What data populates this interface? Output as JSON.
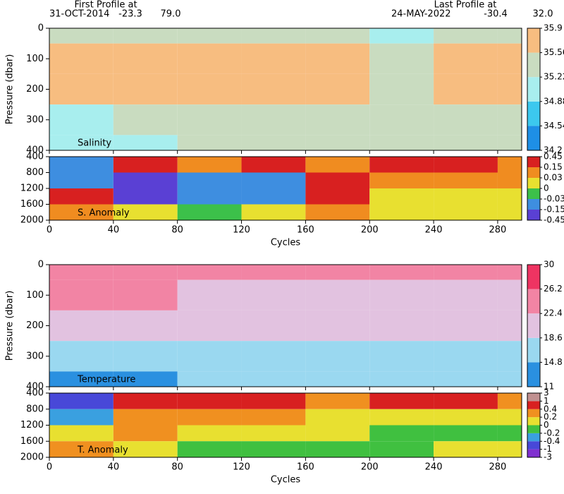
{
  "header": {
    "first_title": "First Profile at",
    "first_date": "31-OCT-2014",
    "first_lat": "-23.3",
    "first_lon": "79.0",
    "last_title": "Last Profile at",
    "last_date": "24-MAY-2022",
    "last_lat": "-30.4",
    "last_lon": "32.0"
  },
  "chart_data": [
    {
      "type": "heatmap",
      "label": "Salinity",
      "ylabel": "Pressure (dbar)",
      "xlim": [
        0,
        295
      ],
      "xticks": [
        0,
        40,
        80,
        120,
        160,
        200,
        240,
        280
      ],
      "ylim": [
        400,
        0
      ],
      "yticks": [
        0,
        100,
        200,
        300,
        400
      ],
      "x": [
        0,
        40,
        80,
        120,
        160,
        200,
        240,
        280,
        295
      ],
      "y": [
        0,
        50,
        150,
        250,
        350,
        400
      ],
      "values": [
        [
          35.4,
          35.5,
          35.4,
          35.5,
          35.3,
          35.2,
          35.3,
          35.4
        ],
        [
          35.7,
          35.7,
          35.6,
          35.6,
          35.6,
          35.5,
          35.6,
          35.6
        ],
        [
          35.6,
          35.6,
          35.6,
          35.6,
          35.6,
          35.5,
          35.6,
          35.6
        ],
        [
          35.2,
          35.4,
          35.5,
          35.5,
          35.5,
          35.4,
          35.5,
          35.5
        ],
        [
          34.9,
          35.2,
          35.3,
          35.3,
          35.3,
          35.3,
          35.3,
          35.3
        ]
      ],
      "cticks": [
        34.2,
        34.54,
        34.88,
        35.22,
        35.56,
        35.9
      ],
      "ccolors": [
        "#1e8fe6",
        "#3cc8ee",
        "#a8eeee",
        "#c9dcc0",
        "#f7bd80"
      ]
    },
    {
      "type": "heatmap",
      "label": "S. Anomaly",
      "xlabel": "Cycles",
      "xlim": [
        0,
        295
      ],
      "xticks": [
        0,
        40,
        80,
        120,
        160,
        200,
        240,
        280
      ],
      "ylim": [
        2000,
        400
      ],
      "yticks": [
        400,
        800,
        1200,
        1600,
        2000
      ],
      "x": [
        0,
        40,
        80,
        120,
        160,
        200,
        240,
        280,
        295
      ],
      "y": [
        400,
        800,
        1200,
        1600,
        2000
      ],
      "values": [
        [
          -0.1,
          0.2,
          0.1,
          0.2,
          0.05,
          0.3,
          0.2,
          0.1
        ],
        [
          -0.1,
          -0.2,
          -0.1,
          -0.05,
          0.2,
          0.1,
          0.05,
          0.05
        ],
        [
          0.2,
          -0.2,
          -0.1,
          -0.15,
          0.2,
          0,
          0,
          0
        ],
        [
          0.1,
          0,
          -0.02,
          0,
          0.1,
          0.02,
          0.02,
          0.02
        ]
      ],
      "cticks": [
        -0.45,
        -0.15,
        -0.03,
        0,
        0.03,
        0.15,
        0.45
      ],
      "ccolors": [
        "#5a40d4",
        "#3e8ee0",
        "#3cc04a",
        "#e8e030",
        "#f08c20",
        "#d82020"
      ]
    },
    {
      "type": "heatmap",
      "label": "Temperature",
      "ylabel": "Pressure (dbar)",
      "xlim": [
        0,
        295
      ],
      "xticks": [
        0,
        40,
        80,
        120,
        160,
        200,
        240,
        280
      ],
      "ylim": [
        400,
        0
      ],
      "yticks": [
        0,
        100,
        200,
        300,
        400
      ],
      "x": [
        0,
        40,
        80,
        120,
        160,
        200,
        240,
        280,
        295
      ],
      "y": [
        0,
        50,
        150,
        250,
        350,
        400
      ],
      "values": [
        [
          25,
          26,
          26,
          26,
          26,
          25,
          26,
          25
        ],
        [
          23,
          23,
          22,
          22,
          22,
          21,
          22,
          22
        ],
        [
          19,
          19,
          19,
          19,
          19,
          19,
          19,
          19
        ],
        [
          15,
          16,
          16,
          17,
          17,
          17,
          17,
          17
        ],
        [
          13,
          14,
          15,
          15,
          15,
          15,
          15,
          16
        ]
      ],
      "cticks": [
        11,
        14.8,
        18.6,
        22.4,
        26.2,
        30
      ],
      "ccolors": [
        "#2a90e0",
        "#9ad8f0",
        "#e2c2e0",
        "#f284a4",
        "#ee3462"
      ]
    },
    {
      "type": "heatmap",
      "label": "T. Anomaly",
      "xlabel": "Cycles",
      "xlim": [
        0,
        295
      ],
      "xticks": [
        0,
        40,
        80,
        120,
        160,
        200,
        240,
        280
      ],
      "ylim": [
        2000,
        400
      ],
      "yticks": [
        400,
        800,
        1200,
        1600,
        2000
      ],
      "x": [
        0,
        40,
        80,
        120,
        160,
        200,
        240,
        280,
        295
      ],
      "y": [
        400,
        800,
        1200,
        1600,
        2000
      ],
      "values": [
        [
          -0.8,
          0.5,
          0.6,
          0.5,
          0.3,
          0.6,
          0.4,
          0.3
        ],
        [
          -0.3,
          0.3,
          0.3,
          0.2,
          0.1,
          0.1,
          0.1,
          0.1
        ],
        [
          0.1,
          0.2,
          0.1,
          0,
          0.1,
          -0.1,
          -0.1,
          -0.1
        ],
        [
          0.3,
          0.1,
          -0.1,
          -0.1,
          -0.1,
          -0.1,
          0,
          0
        ]
      ],
      "cticks": [
        -3,
        -1,
        -0.4,
        -0.2,
        0,
        0.2,
        0.4,
        1,
        3
      ],
      "ccolors": [
        "#8030d0",
        "#4848d8",
        "#3aa0e0",
        "#40c040",
        "#e8e030",
        "#f09020",
        "#d82020",
        "#c09090"
      ]
    }
  ]
}
